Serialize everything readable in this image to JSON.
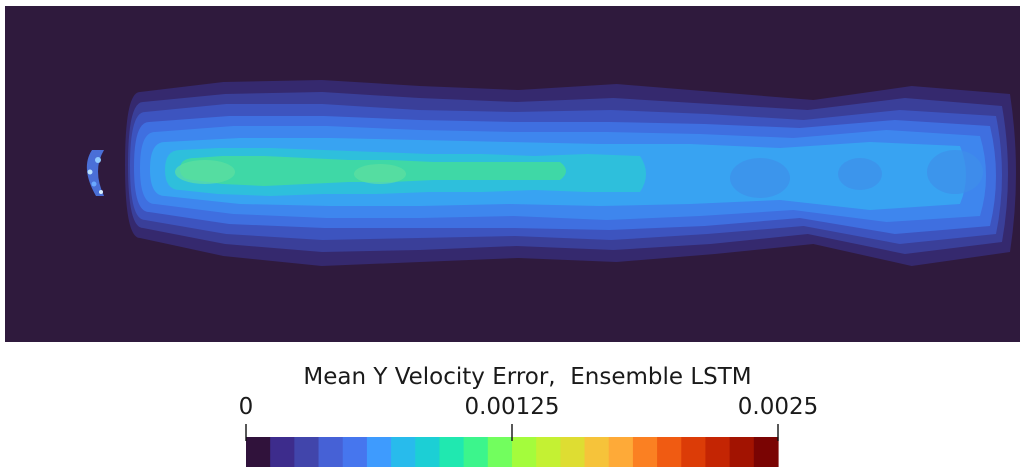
{
  "chart_data": {
    "type": "heatmap",
    "title": "",
    "field": {
      "background_color": "#2f1a3d",
      "description_layers": [
        {
          "level": 0.0001,
          "color": "#35296e"
        },
        {
          "level": 0.00025,
          "color": "#3a3f99"
        },
        {
          "level": 0.0004,
          "color": "#3d54bf"
        },
        {
          "level": 0.00055,
          "color": "#3f6fe0"
        },
        {
          "level": 0.0007,
          "color": "#3e86ee"
        },
        {
          "level": 0.00085,
          "color": "#38a3f2"
        },
        {
          "level": 0.001,
          "color": "#2ebfdc"
        },
        {
          "level": 0.00115,
          "color": "#3fd8a6"
        }
      ]
    },
    "colorbar": {
      "title": "Mean Y Velocity Error,  Ensemble LSTM",
      "range": [
        0,
        0.0025
      ],
      "ticks": [
        {
          "value": 0,
          "label": "0"
        },
        {
          "value": 0.00125,
          "label": "0.00125"
        },
        {
          "value": 0.0025,
          "label": "0.0025"
        }
      ],
      "colors": [
        "#30123b",
        "#3d2c8c",
        "#4145ab",
        "#4661d6",
        "#4676ee",
        "#3e9bfe",
        "#28bbec",
        "#1ccfd5",
        "#20e8b0",
        "#3cf58c",
        "#72fe5e",
        "#a4fc3c",
        "#c4f133",
        "#dedd32",
        "#f6c33a",
        "#feaa38",
        "#fb8022",
        "#f05b12",
        "#dc3c07",
        "#c42503",
        "#a21301",
        "#7a0403"
      ]
    }
  }
}
